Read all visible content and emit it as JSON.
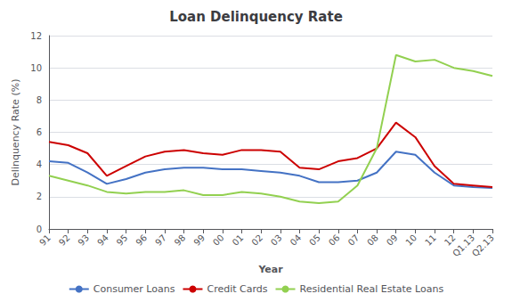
{
  "chart_data": {
    "type": "line",
    "title": "Loan Delinquency Rate",
    "xlabel": "Year",
    "ylabel": "Delinquency Rate (%)",
    "categories": [
      "91",
      "92",
      "93",
      "94",
      "95",
      "96",
      "97",
      "98",
      "99",
      "00",
      "01",
      "02",
      "03",
      "04",
      "05",
      "06",
      "07",
      "08",
      "09",
      "10",
      "11",
      "12",
      "Q1.13",
      "Q2.13"
    ],
    "series": [
      {
        "name": "Consumer Loans",
        "color": "#4472c4",
        "values": [
          4.2,
          4.1,
          3.5,
          2.8,
          3.1,
          3.5,
          3.7,
          3.8,
          3.8,
          3.7,
          3.7,
          3.6,
          3.5,
          3.3,
          2.9,
          2.9,
          3.0,
          3.5,
          4.8,
          4.6,
          3.5,
          2.7,
          2.6,
          2.55
        ]
      },
      {
        "name": "Credit Cards",
        "color": "#cc0000",
        "values": [
          5.4,
          5.2,
          4.7,
          3.3,
          3.9,
          4.5,
          4.8,
          4.9,
          4.7,
          4.6,
          4.9,
          4.9,
          4.8,
          3.8,
          3.7,
          4.2,
          4.4,
          5.0,
          6.6,
          5.7,
          3.9,
          2.8,
          2.7,
          2.6
        ]
      },
      {
        "name": "Residential Real Estate Loans",
        "color": "#92d050",
        "values": [
          3.3,
          3.0,
          2.7,
          2.3,
          2.2,
          2.3,
          2.3,
          2.4,
          2.1,
          2.1,
          2.3,
          2.2,
          2.0,
          1.7,
          1.6,
          1.7,
          2.7,
          5.0,
          10.8,
          10.4,
          10.5,
          10.0,
          9.8,
          9.5
        ]
      }
    ],
    "ylim": [
      0,
      12
    ],
    "yticks": [
      0,
      2,
      4,
      6,
      8,
      10,
      12
    ],
    "grid": true,
    "legend": "bottom"
  }
}
